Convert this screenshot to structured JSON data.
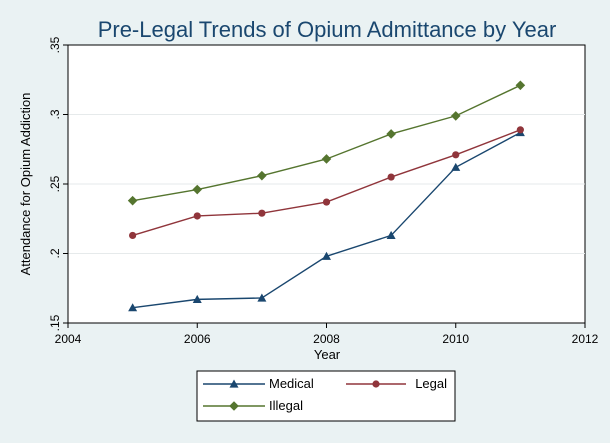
{
  "chart_data": {
    "type": "line",
    "title": "Pre-Legal Trends of Opium Admittance by Year",
    "xlabel": "Year",
    "ylabel": "Attendance for Opium Addiction",
    "xlim": [
      2004,
      2012
    ],
    "ylim": [
      0.15,
      0.35
    ],
    "x_ticks": [
      "2004",
      "2006",
      "2008",
      "2010",
      "2012"
    ],
    "y_ticks": [
      ".15",
      ".2",
      ".25",
      ".3",
      ".35"
    ],
    "grid": true,
    "legend_position": "bottom",
    "x": [
      2005,
      2006,
      2007,
      2008,
      2009,
      2010,
      2011
    ],
    "series": [
      {
        "name": "Medical",
        "color": "#1a476f",
        "marker": "triangle",
        "values": [
          0.161,
          0.167,
          0.168,
          0.198,
          0.213,
          0.262,
          0.287
        ]
      },
      {
        "name": "Legal",
        "color": "#90353b",
        "marker": "circle",
        "values": [
          0.213,
          0.227,
          0.229,
          0.237,
          0.255,
          0.271,
          0.289
        ]
      },
      {
        "name": "Illegal",
        "color": "#55752f",
        "marker": "diamond",
        "values": [
          0.238,
          0.246,
          0.256,
          0.268,
          0.286,
          0.299,
          0.321
        ]
      }
    ]
  }
}
